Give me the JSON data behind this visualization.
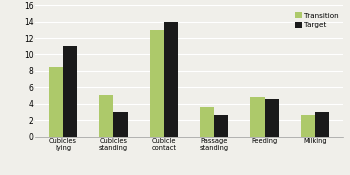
{
  "categories": [
    "Cubicles\nlying",
    "Cubicles\nstanding",
    "Cubicle\ncontact",
    "Passage\nstanding",
    "Feeding",
    "Milking"
  ],
  "transition": [
    8.5,
    5.0,
    13.0,
    3.6,
    4.8,
    2.6
  ],
  "target": [
    11.0,
    3.0,
    14.0,
    2.6,
    4.6,
    3.0
  ],
  "transition_color": "#adc96a",
  "target_color": "#1a1a1a",
  "legend_labels": [
    "Transition",
    "Target"
  ],
  "ylim": [
    0,
    16
  ],
  "yticks": [
    0,
    2,
    4,
    6,
    8,
    10,
    12,
    14,
    16
  ],
  "bar_width": 0.28,
  "background_color": "#f0efea",
  "grid_color": "#ffffff",
  "figure_width": 3.5,
  "figure_height": 1.75
}
